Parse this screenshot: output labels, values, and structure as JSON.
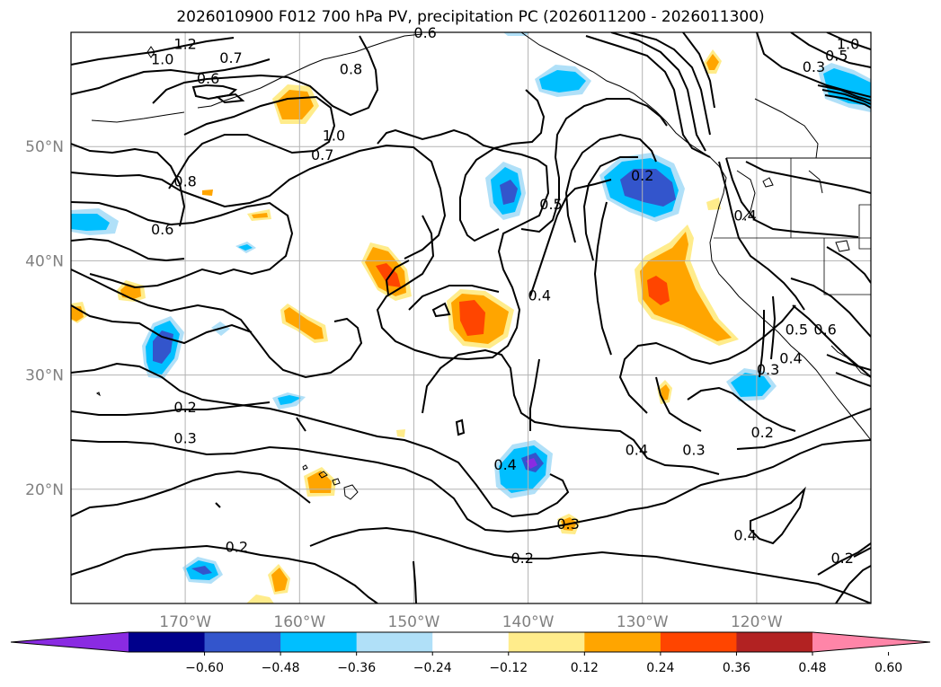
{
  "title": "2026010900 F012 700 hPa PV, precipitation PC (2026011200 - 2026011300)",
  "map": {
    "lon_range": [
      -180,
      -110
    ],
    "lat_range": [
      10,
      60
    ],
    "lon_ticks": [
      {
        "value": -170,
        "label": "170°W"
      },
      {
        "value": -160,
        "label": "160°W"
      },
      {
        "value": -150,
        "label": "150°W"
      },
      {
        "value": -140,
        "label": "140°W"
      },
      {
        "value": -130,
        "label": "130°W"
      },
      {
        "value": -120,
        "label": "120°W"
      }
    ],
    "lat_ticks": [
      {
        "value": 20,
        "label": "20°N"
      },
      {
        "value": 30,
        "label": "30°N"
      },
      {
        "value": 40,
        "label": "40°N"
      },
      {
        "value": 50,
        "label": "50°N"
      }
    ],
    "contour_labels": [
      {
        "lon": -170,
        "lat": 59,
        "text": "1.2"
      },
      {
        "lon": -172,
        "lat": 57.7,
        "text": "1.0"
      },
      {
        "lon": -168,
        "lat": 56,
        "text": "0.6"
      },
      {
        "lon": -166,
        "lat": 57.8,
        "text": "0.7"
      },
      {
        "lon": -155.5,
        "lat": 56.8,
        "text": "0.8"
      },
      {
        "lon": -157,
        "lat": 51,
        "text": "1.0"
      },
      {
        "lon": -158,
        "lat": 49.3,
        "text": "0.7"
      },
      {
        "lon": -170,
        "lat": 47,
        "text": "0.8"
      },
      {
        "lon": -172,
        "lat": 42.8,
        "text": "0.6"
      },
      {
        "lon": -130,
        "lat": 47.5,
        "text": "0.2"
      },
      {
        "lon": -138,
        "lat": 45,
        "text": "0.5"
      },
      {
        "lon": -139,
        "lat": 37,
        "text": "0.4"
      },
      {
        "lon": -121,
        "lat": 44,
        "text": "0.4"
      },
      {
        "lon": -116.5,
        "lat": 34,
        "text": "0.5"
      },
      {
        "lon": -114,
        "lat": 34,
        "text": "0.6"
      },
      {
        "lon": -117,
        "lat": 31.5,
        "text": "0.4"
      },
      {
        "lon": -119,
        "lat": 30.5,
        "text": "0.3"
      },
      {
        "lon": -170,
        "lat": 27.2,
        "text": "0.2"
      },
      {
        "lon": -170,
        "lat": 24.5,
        "text": "0.3"
      },
      {
        "lon": -130.5,
        "lat": 23.5,
        "text": "0.4"
      },
      {
        "lon": -125.5,
        "lat": 23.5,
        "text": "0.3"
      },
      {
        "lon": -119.5,
        "lat": 25,
        "text": "0.2"
      },
      {
        "lon": -142,
        "lat": 22.2,
        "text": "0.4"
      },
      {
        "lon": -136.5,
        "lat": 17,
        "text": "0.3"
      },
      {
        "lon": -140.5,
        "lat": 14,
        "text": "0.2"
      },
      {
        "lon": -121,
        "lat": 16,
        "text": "0.4"
      },
      {
        "lon": -112.5,
        "lat": 14,
        "text": "0.2"
      },
      {
        "lon": -165.5,
        "lat": 15,
        "text": "0.2"
      },
      {
        "lon": -149,
        "lat": 60,
        "text": "0.6"
      },
      {
        "lon": -115,
        "lat": 57,
        "text": "0.3"
      },
      {
        "lon": -113,
        "lat": 58,
        "text": "0.5"
      },
      {
        "lon": -112,
        "lat": 59,
        "text": "1.0"
      }
    ]
  },
  "colorbar": {
    "colors": [
      "#8a2be2",
      "#00008b",
      "#3355cc",
      "#00bfff",
      "#b0e0f8",
      "#ffffff",
      "#ffec8b",
      "#ffa500",
      "#ff4500",
      "#b22222",
      "#ff85a8"
    ],
    "ticks": [
      "−0.60",
      "−0.48",
      "−0.36",
      "−0.24",
      "−0.12",
      "0.12",
      "0.24",
      "0.36",
      "0.48",
      "0.60"
    ]
  }
}
